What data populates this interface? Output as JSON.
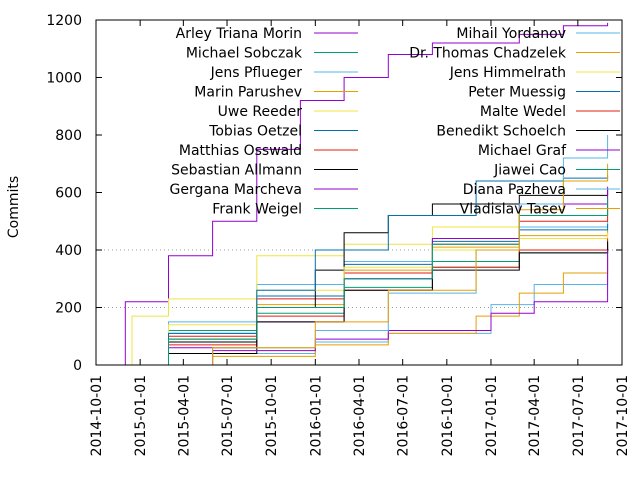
{
  "chart_data": {
    "type": "line",
    "title": "",
    "xlabel": "",
    "ylabel": "Commits",
    "x_range": [
      "2014-10-01",
      "2017-10-01"
    ],
    "ylim": [
      0,
      1200
    ],
    "y_ticks": [
      0,
      200,
      400,
      600,
      800,
      1000,
      1200
    ],
    "x_ticks": [
      "2014-10-01",
      "2015-01-01",
      "2015-04-01",
      "2015-07-01",
      "2015-10-01",
      "2016-01-01",
      "2016-04-01",
      "2016-07-01",
      "2016-10-01",
      "2017-01-01",
      "2017-04-01",
      "2017-07-01",
      "2017-10-01"
    ],
    "grid": "horizontal dotted at 200 and 400",
    "legend": {
      "placement": "top, two columns",
      "columns": 2
    },
    "series": [
      {
        "name": "Arley Triana Morin",
        "color": "#9400d3",
        "x": [
          "2014-10-10",
          "2014-12-01",
          "2015-03-01",
          "2015-06-01",
          "2015-09-01",
          "2015-12-01",
          "2016-03-01",
          "2016-06-01",
          "2016-09-01",
          "2017-03-01",
          "2017-06-01",
          "2017-09-01"
        ],
        "y": [
          0,
          220,
          380,
          500,
          750,
          920,
          1000,
          1080,
          1120,
          1150,
          1180,
          1190
        ]
      },
      {
        "name": "Michael Sobczak",
        "color": "#009e73",
        "x": [
          "2014-10-10",
          "2015-03-01",
          "2015-09-01",
          "2016-03-01",
          "2016-09-01",
          "2017-03-01",
          "2017-09-01"
        ],
        "y": [
          0,
          120,
          200,
          300,
          360,
          400,
          420
        ]
      },
      {
        "name": "Jens Pflueger",
        "color": "#56b4e9",
        "x": [
          "2014-10-15",
          "2015-03-01",
          "2015-09-01",
          "2016-03-01",
          "2016-09-01",
          "2017-03-01",
          "2017-09-01"
        ],
        "y": [
          0,
          150,
          280,
          360,
          440,
          480,
          500
        ]
      },
      {
        "name": "Marin Parushev",
        "color": "#e69f00",
        "x": [
          "2014-10-20",
          "2015-03-01",
          "2015-09-01",
          "2016-03-01",
          "2016-09-01",
          "2017-03-01",
          "2017-09-01"
        ],
        "y": [
          0,
          90,
          210,
          330,
          410,
          450,
          470
        ]
      },
      {
        "name": "Uwe Reeder",
        "color": "#f0e442",
        "x": [
          "2014-10-10",
          "2014-12-15",
          "2015-03-01",
          "2015-09-01",
          "2016-03-01",
          "2016-09-01",
          "2017-03-01",
          "2017-09-01"
        ],
        "y": [
          0,
          170,
          230,
          380,
          420,
          480,
          520,
          560
        ]
      },
      {
        "name": "Tobias Oetzel",
        "color": "#0072b2",
        "x": [
          "2014-10-15",
          "2015-03-01",
          "2015-09-01",
          "2016-03-01",
          "2016-09-01",
          "2017-03-01",
          "2017-09-01"
        ],
        "y": [
          0,
          110,
          240,
          350,
          430,
          470,
          490
        ]
      },
      {
        "name": "Matthias Osswald",
        "color": "#e51e10",
        "x": [
          "2014-10-15",
          "2015-03-01",
          "2015-09-01",
          "2016-03-01",
          "2016-09-01",
          "2017-03-01",
          "2017-09-01"
        ],
        "y": [
          0,
          100,
          230,
          320,
          420,
          500,
          560
        ]
      },
      {
        "name": "Sebastian Allmann",
        "color": "#000000",
        "x": [
          "2014-10-20",
          "2015-03-01",
          "2015-09-01",
          "2016-01-01",
          "2016-03-01",
          "2016-06-01",
          "2016-09-01",
          "2017-03-01",
          "2017-09-01"
        ],
        "y": [
          0,
          80,
          200,
          330,
          460,
          520,
          560,
          590,
          610
        ]
      },
      {
        "name": "Gergana Marcheva",
        "color": "#9400d3",
        "x": [
          "2014-10-25",
          "2015-03-01",
          "2015-09-01",
          "2016-03-01",
          "2016-09-01",
          "2017-03-01",
          "2017-09-01"
        ],
        "y": [
          0,
          60,
          150,
          300,
          440,
          560,
          620
        ]
      },
      {
        "name": "Frank Weigel",
        "color": "#009e73",
        "x": [
          "2014-10-25",
          "2015-03-01",
          "2015-09-01",
          "2016-03-01",
          "2016-09-01",
          "2017-03-01",
          "2017-09-01"
        ],
        "y": [
          0,
          90,
          180,
          270,
          340,
          390,
          410
        ]
      },
      {
        "name": "Mihail Yordanov",
        "color": "#56b4e9",
        "x": [
          "2014-11-01",
          "2015-06-01",
          "2016-01-01",
          "2016-06-01",
          "2017-01-01",
          "2017-04-01",
          "2017-09-01"
        ],
        "y": [
          0,
          40,
          80,
          110,
          210,
          280,
          410
        ]
      },
      {
        "name": "Dr. Thomas Chadzelek",
        "color": "#e69f00",
        "x": [
          "2014-11-01",
          "2015-06-01",
          "2016-01-01",
          "2016-06-01",
          "2016-12-01",
          "2017-03-01",
          "2017-06-01",
          "2017-09-01"
        ],
        "y": [
          0,
          30,
          70,
          110,
          170,
          250,
          320,
          380
        ]
      },
      {
        "name": "Jens Himmelrath",
        "color": "#f0e442",
        "x": [
          "2014-10-20",
          "2015-03-01",
          "2015-09-01",
          "2016-03-01",
          "2016-09-01",
          "2017-03-01",
          "2017-09-01"
        ],
        "y": [
          0,
          140,
          260,
          340,
          400,
          440,
          460
        ]
      },
      {
        "name": "Peter Muessig",
        "color": "#0072b2",
        "x": [
          "2014-10-20",
          "2015-03-01",
          "2015-09-01",
          "2016-01-01",
          "2016-06-01",
          "2016-12-01",
          "2017-06-01",
          "2017-09-01"
        ],
        "y": [
          0,
          110,
          260,
          400,
          520,
          640,
          650,
          660
        ]
      },
      {
        "name": "Malte Wedel",
        "color": "#e51e10",
        "x": [
          "2014-10-25",
          "2015-03-01",
          "2015-09-01",
          "2016-03-01",
          "2016-09-01",
          "2017-03-01",
          "2017-09-01"
        ],
        "y": [
          0,
          70,
          170,
          260,
          340,
          400,
          440
        ]
      },
      {
        "name": "Benedikt Schoelch",
        "color": "#000000",
        "x": [
          "2014-11-01",
          "2015-03-01",
          "2015-09-01",
          "2016-03-01",
          "2016-09-01",
          "2017-03-01",
          "2017-09-01"
        ],
        "y": [
          0,
          40,
          150,
          260,
          330,
          390,
          430
        ]
      },
      {
        "name": "Michael Graf",
        "color": "#9400d3",
        "x": [
          "2014-11-01",
          "2015-06-01",
          "2016-01-01",
          "2016-06-01",
          "2017-01-01",
          "2017-04-01",
          "2017-09-01"
        ],
        "y": [
          0,
          50,
          90,
          120,
          180,
          220,
          400
        ]
      },
      {
        "name": "Jiawei Cao",
        "color": "#009e73",
        "x": [
          "2014-11-01",
          "2015-03-01",
          "2015-09-01",
          "2016-03-01",
          "2016-09-01",
          "2017-03-01",
          "2017-09-01"
        ],
        "y": [
          0,
          90,
          200,
          300,
          420,
          520,
          580
        ]
      },
      {
        "name": "Diana Pazheva",
        "color": "#56b4e9",
        "x": [
          "2014-11-05",
          "2015-06-01",
          "2016-01-01",
          "2016-06-01",
          "2016-12-01",
          "2017-03-01",
          "2017-06-01",
          "2017-09-01"
        ],
        "y": [
          0,
          60,
          120,
          250,
          400,
          560,
          720,
          800
        ]
      },
      {
        "name": "Vladislav Tasev",
        "color": "#e69f00",
        "x": [
          "2014-11-05",
          "2015-06-01",
          "2016-01-01",
          "2016-06-01",
          "2016-12-01",
          "2017-03-01",
          "2017-06-01",
          "2017-09-01"
        ],
        "y": [
          0,
          60,
          150,
          260,
          400,
          540,
          640,
          700
        ]
      }
    ]
  }
}
